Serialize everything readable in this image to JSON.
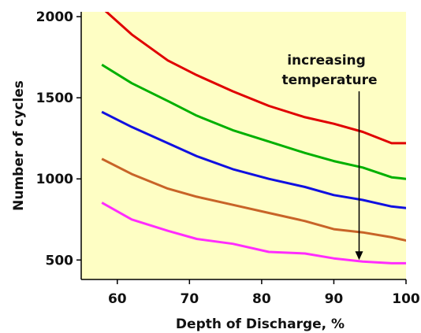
{
  "chart_data": {
    "type": "line",
    "title": "",
    "xlabel": "Depth of Discharge, %",
    "ylabel": "Number of cycles",
    "xlim": [
      55,
      100
    ],
    "ylim": [
      380,
      2030
    ],
    "xticks": [
      60,
      70,
      80,
      90,
      100
    ],
    "yticks": [
      500,
      1000,
      1500,
      2000
    ],
    "grid": false,
    "legend": "none",
    "plot_background": "#fefec4",
    "annotation": {
      "lines": [
        "increasing",
        "temperature"
      ],
      "arrow_x": 93.5,
      "arrow_from_y": 1540,
      "arrow_to_y": 500
    },
    "series": [
      {
        "color": "#e00000",
        "x": [
          58.5,
          62,
          67,
          71,
          76,
          81,
          86,
          90,
          94,
          98,
          100
        ],
        "y": [
          2030,
          1890,
          1730,
          1640,
          1540,
          1450,
          1380,
          1340,
          1290,
          1220,
          1220
        ]
      },
      {
        "color": "#00b000",
        "x": [
          58,
          62,
          67,
          71,
          76,
          81,
          86,
          90,
          94,
          98,
          100
        ],
        "y": [
          1700,
          1590,
          1480,
          1390,
          1300,
          1230,
          1160,
          1110,
          1070,
          1010,
          1000
        ]
      },
      {
        "color": "#1010e0",
        "x": [
          58,
          62,
          67,
          71,
          76,
          81,
          86,
          90,
          94,
          98,
          100
        ],
        "y": [
          1410,
          1320,
          1220,
          1140,
          1060,
          1000,
          950,
          900,
          870,
          830,
          820
        ]
      },
      {
        "color": "#c86428",
        "x": [
          58,
          62,
          67,
          71,
          76,
          81,
          86,
          90,
          94,
          98,
          100
        ],
        "y": [
          1120,
          1030,
          940,
          890,
          840,
          790,
          740,
          690,
          670,
          640,
          620
        ]
      },
      {
        "color": "#ff2cff",
        "x": [
          58,
          62,
          67,
          71,
          76,
          81,
          86,
          90,
          94,
          98,
          100
        ],
        "y": [
          850,
          750,
          680,
          630,
          600,
          550,
          540,
          510,
          490,
          480,
          480
        ]
      }
    ]
  }
}
